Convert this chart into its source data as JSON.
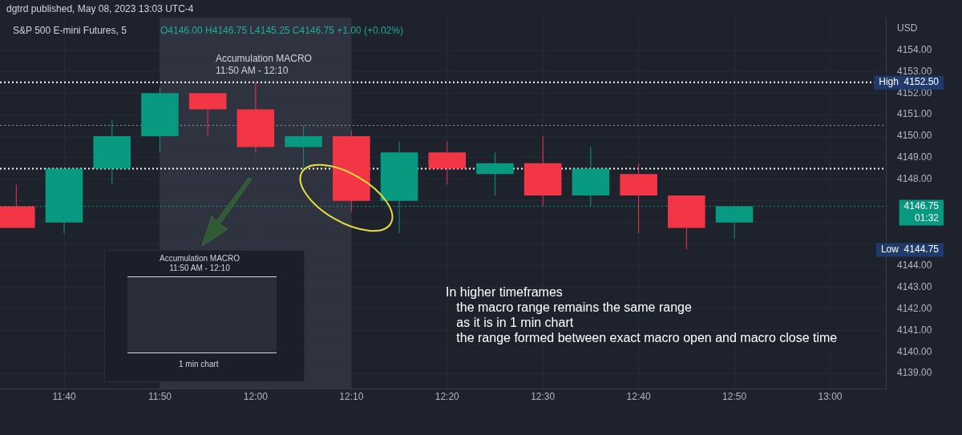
{
  "chart_data": {
    "type": "candlestick",
    "title": "S&P 500 E-mini Futures, 5",
    "subtitle": "O4146.00 H4146.75 L4145.25 C4146.75 +1.00 (+0.02%)",
    "ylabel": "USD",
    "x": [
      11.583333,
      11.666667,
      11.75,
      11.833333,
      11.916667,
      12,
      12.083333,
      12.166667,
      12.25,
      12.333333,
      12.416667,
      12.5,
      12.583333,
      12.666667,
      12.75,
      12.833333
    ],
    "ohlc": [
      [
        4146.75,
        4147.75,
        4145.75,
        4145.75
      ],
      [
        4146.0,
        4148.5,
        4145.5,
        4148.5
      ],
      [
        4148.5,
        4150.75,
        4147.75,
        4150.0
      ],
      [
        4150.0,
        4152.25,
        4149.25,
        4152.0
      ],
      [
        4152.0,
        4152.0,
        4150.0,
        4151.25
      ],
      [
        4151.25,
        4152.5,
        4149.25,
        4149.5
      ],
      [
        4149.5,
        4150.5,
        4148.5,
        4150.0
      ],
      [
        4150.0,
        4150.25,
        4146.5,
        4147.0
      ],
      [
        4147.0,
        4149.75,
        4145.5,
        4149.25
      ],
      [
        4149.25,
        4149.75,
        4147.75,
        4148.5
      ],
      [
        4148.25,
        4149.25,
        4147.25,
        4148.75
      ],
      [
        4148.75,
        4150.0,
        4146.75,
        4147.25
      ],
      [
        4147.25,
        4149.5,
        4146.75,
        4148.5
      ],
      [
        4148.25,
        4148.75,
        4145.5,
        4147.25
      ],
      [
        4147.25,
        4147.25,
        4144.75,
        4145.75
      ],
      [
        4146.0,
        4146.75,
        4145.25,
        4146.75
      ]
    ],
    "colors": [
      "#f23645",
      "#089981",
      "#089981",
      "#089981",
      "#f23645",
      "#f23645",
      "#089981",
      "#f23645",
      "#089981",
      "#f23645",
      "#089981",
      "#f23645",
      "#089981",
      "#f23645",
      "#f23645",
      "#089981"
    ],
    "xlim": [
      11.555,
      13.097
    ],
    "xticks": [
      {
        "value": 11.666667,
        "label": "11:40"
      },
      {
        "value": 11.833333,
        "label": "11:50"
      },
      {
        "value": 12,
        "label": "12:00"
      },
      {
        "value": 12.166667,
        "label": "12:10"
      },
      {
        "value": 12.333333,
        "label": "12:20"
      },
      {
        "value": 12.5,
        "label": "12:30"
      },
      {
        "value": 12.666667,
        "label": "12:40"
      },
      {
        "value": 12.833333,
        "label": "12:50"
      },
      {
        "value": 13,
        "label": "13:00"
      }
    ],
    "ylim": [
      4138.3,
      4155.5
    ],
    "yticks": [
      {
        "value": 4139,
        "label": "4139.00"
      },
      {
        "value": 4140,
        "label": "4140.00"
      },
      {
        "value": 4141,
        "label": "4141.00"
      },
      {
        "value": 4142,
        "label": "4142.00"
      },
      {
        "value": 4143,
        "label": "4143.00"
      },
      {
        "value": 4144,
        "label": "4144.00"
      },
      {
        "value": 4145,
        "label": null
      },
      {
        "value": 4146,
        "label": null
      },
      {
        "value": 4147,
        "label": null
      },
      {
        "value": 4148,
        "label": "4148.00"
      },
      {
        "value": 4149,
        "label": "4149.00"
      },
      {
        "value": 4150,
        "label": "4150.00"
      },
      {
        "value": 4151,
        "label": "4151.00"
      },
      {
        "value": 4152,
        "label": "4152.00"
      },
      {
        "value": 4153,
        "label": "4153.00"
      },
      {
        "value": 4154,
        "label": "4154.00"
      }
    ],
    "grid": true,
    "legend": false,
    "bands": [
      {
        "axis": "x",
        "from": 11.833333,
        "to": 12.166667,
        "label": "Accumulation MACRO\n11:50 AM - 12:10",
        "color": "#363a45"
      }
    ],
    "ref_lines": [
      {
        "axis": "y",
        "value": 4152.5,
        "label": "High  4152.50",
        "color": "#ffffff",
        "line_style": "dotted"
      },
      {
        "axis": "y",
        "value": 4150.5,
        "color": "#9598a1",
        "line_style": "dotted"
      },
      {
        "axis": "y",
        "value": 4148.5,
        "color": "#ffffff",
        "line_style": "dotted"
      },
      {
        "axis": "y",
        "value": 4146.75,
        "label": "4146.75\n01:32",
        "color": "#089981",
        "line_style": "dotted"
      }
    ],
    "annotations": [
      "dgtrd published, May 08, 2023 13:03 UTC-4",
      "In higher timeframes\n   the macro range remains the same range\n   as it is in 1 min chart\n   the range formed between exact macro open and macro close time",
      "Accumulation MACRO\n11:50 AM - 12:10",
      "1 min chart",
      "Low  4144.75"
    ]
  }
}
